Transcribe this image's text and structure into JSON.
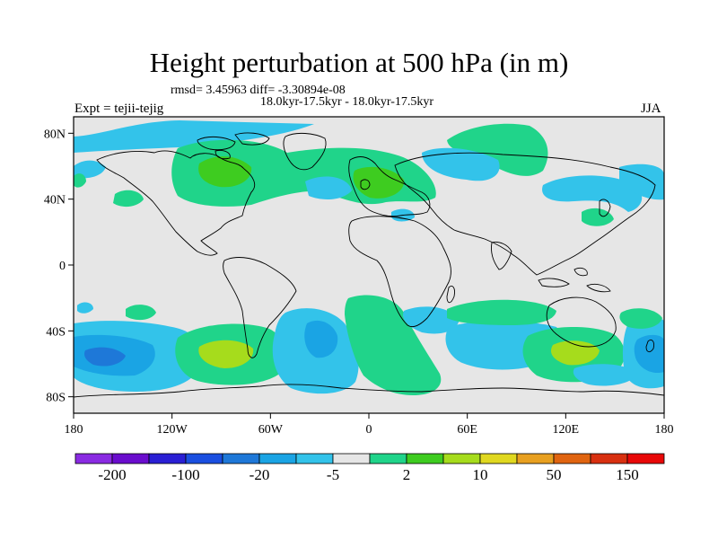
{
  "title": "Height perturbation at 500 hPa (in m)",
  "rmsd_line": "rmsd= 3.45963 diff= -3.30894e-08",
  "period_line": "18.0kyr-17.5kyr - 18.0kyr-17.5kyr",
  "expt_label": "Expt = tejii-tejig",
  "season": "JJA",
  "map": {
    "lon_range": [
      -180,
      180
    ],
    "lat_range": [
      -90,
      90
    ],
    "lat_ticks": [
      {
        "value": 80,
        "label": "80N"
      },
      {
        "value": 40,
        "label": "40N"
      },
      {
        "value": 0,
        "label": "0"
      },
      {
        "value": -40,
        "label": "40S"
      },
      {
        "value": -80,
        "label": "80S"
      }
    ],
    "lon_ticks": [
      {
        "value": -180,
        "label": "180"
      },
      {
        "value": -120,
        "label": "120W"
      },
      {
        "value": -60,
        "label": "60W"
      },
      {
        "value": 0,
        "label": "0"
      },
      {
        "value": 60,
        "label": "60E"
      },
      {
        "value": 120,
        "label": "120E"
      },
      {
        "value": 180,
        "label": "180"
      }
    ]
  },
  "colorbar": {
    "colors": [
      "#8a2be2",
      "#6a0dcd",
      "#2a1fd4",
      "#1a4fe0",
      "#1e78d8",
      "#1aa4e4",
      "#33c3ea",
      "#e6e6e6",
      "#20d48a",
      "#3ecc20",
      "#a6dc1c",
      "#e0d820",
      "#e8a020",
      "#e06410",
      "#d83010",
      "#e80808"
    ],
    "labels": [
      "-200",
      "-100",
      "-20",
      "-5",
      "2",
      "10",
      "50",
      "150"
    ]
  },
  "colors": {
    "background": "#e6e6e6",
    "light_blue": "#33c3ea",
    "mid_blue": "#1aa4e4",
    "blue": "#1e78d8",
    "green": "#20d48a",
    "bright_green": "#3ecc20",
    "yellow_green": "#a6dc1c"
  }
}
